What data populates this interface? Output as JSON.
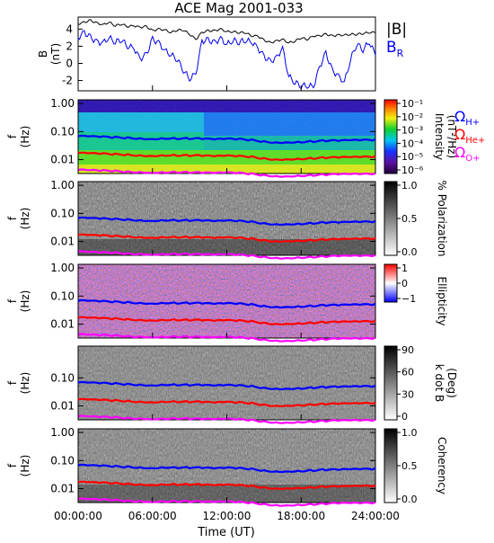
{
  "title": "ACE Mag 2001-033",
  "colors": {
    "btotal": "#000000",
    "br": "#0000ee",
    "h_plus": "#0000ff",
    "he_plus": "#ff0000",
    "o_plus": "#ff00ff"
  },
  "chart_data": [
    {
      "type": "line",
      "panel": "magnetic-field",
      "ylabel_top": "B",
      "ylabel_bottom": "(nT)",
      "ylim": [
        -3.2,
        5.4
      ],
      "yticks": [
        "4",
        "2",
        "0",
        "-2"
      ],
      "ytick_values": [
        4,
        2,
        0,
        -2
      ],
      "legend": [
        {
          "label": "|B|",
          "sub": "",
          "color": "#000000"
        },
        {
          "label": "B",
          "sub": "R",
          "color": "#0000ee"
        }
      ],
      "series": [
        {
          "id": "btotal",
          "color": "#000000",
          "x_hours": [
            0,
            0.5,
            1,
            1.5,
            2,
            2.5,
            3,
            3.5,
            4,
            4.5,
            5,
            5.5,
            6,
            6.5,
            7,
            7.5,
            8,
            8.5,
            9,
            9.5,
            10,
            10.5,
            11,
            11.5,
            12,
            12.5,
            13,
            13.5,
            14,
            14.5,
            15,
            15.5,
            16,
            16.5,
            17,
            17.5,
            18,
            18.5,
            19,
            19.5,
            20,
            20.5,
            21,
            21.5,
            22,
            22.5,
            23,
            23.5,
            24
          ],
          "values": [
            4.6,
            4.8,
            5.0,
            4.7,
            4.5,
            4.8,
            4.4,
            4.6,
            4.3,
            4.4,
            4.2,
            4.3,
            3.8,
            4.0,
            3.9,
            3.6,
            3.9,
            3.9,
            3.4,
            2.8,
            3.6,
            3.8,
            3.8,
            4.0,
            3.7,
            3.7,
            3.6,
            3.6,
            3.2,
            3.2,
            2.7,
            2.4,
            2.6,
            2.8,
            2.4,
            2.6,
            3.0,
            2.8,
            3.2,
            3.2,
            3.4,
            3.2,
            3.3,
            3.3,
            3.4,
            3.4,
            3.5,
            3.6,
            3.6
          ]
        },
        {
          "id": "br",
          "color": "#0000ee",
          "x_hours": [
            0,
            0.5,
            1,
            1.5,
            2,
            2.5,
            3,
            3.5,
            4,
            4.5,
            5,
            5.5,
            6,
            6.5,
            7,
            7.5,
            8,
            8.5,
            9,
            9.5,
            10,
            10.5,
            11,
            11.5,
            12,
            12.5,
            13,
            13.5,
            14,
            14.5,
            15,
            15.5,
            16,
            16.5,
            17,
            17.5,
            18,
            18.5,
            19,
            19.5,
            20,
            20.5,
            21,
            21.5,
            22,
            22.5,
            23,
            23.5,
            24
          ],
          "values": [
            3.0,
            3.6,
            3.0,
            2.5,
            2.4,
            3.0,
            2.5,
            2.8,
            2.0,
            1.8,
            0.5,
            1.0,
            2.8,
            2.4,
            1.5,
            1.0,
            0.5,
            -0.8,
            -1.8,
            -1.2,
            2.6,
            2.7,
            2.4,
            2.9,
            2.2,
            2.7,
            2.5,
            2.7,
            2.5,
            1.8,
            0.8,
            0.2,
            0.6,
            1.8,
            -1.5,
            -2.2,
            -2.6,
            -2.6,
            -2.7,
            -0.4,
            1.2,
            -0.8,
            -1.5,
            -2.2,
            0.5,
            2.3,
            1.6,
            2.5,
            1.0
          ]
        }
      ]
    },
    {
      "type": "heatmap",
      "panel": "spectrum",
      "ylabel_top": "f",
      "ylabel_bottom": "(Hz)",
      "yticks": [
        "1.00",
        "0.10",
        "0.01"
      ],
      "colorbar": {
        "label_line1": "Intensity",
        "label_line2": "(nT²/Hz)",
        "tick_labels": [
          "10⁻¹",
          "10⁻²",
          "10⁻³",
          "10⁻⁴",
          "10⁻⁵",
          "10⁻⁶"
        ]
      },
      "gyro_legend": [
        {
          "symbol": "Ω",
          "sub": "H+",
          "color": "#0000ff"
        },
        {
          "symbol": "Ω",
          "sub": "He+",
          "color": "#ff0000"
        },
        {
          "symbol": "Ω",
          "sub": "O+",
          "color": "#ff00ff"
        }
      ]
    },
    {
      "type": "heatmap",
      "panel": "polarization",
      "ylabel_top": "f",
      "ylabel_bottom": "(Hz)",
      "yticks": [
        "1.00",
        "0.10",
        "0.01"
      ],
      "colorbar": {
        "label_line1": "% Polarization",
        "label_line2": "",
        "tick_labels": [
          "1.0",
          "0.5",
          "0.0"
        ]
      }
    },
    {
      "type": "heatmap",
      "panel": "ellipticity",
      "ylabel_top": "f",
      "ylabel_bottom": "(Hz)",
      "yticks": [
        "1.00",
        "0.10",
        "0.01"
      ],
      "colorbar": {
        "label_line1": "Ellipticity",
        "label_line2": "",
        "tick_labels": [
          "1",
          "0",
          "−1"
        ]
      }
    },
    {
      "type": "heatmap",
      "panel": "k-dot-b",
      "ylabel_top": "f",
      "ylabel_bottom": "(Hz)",
      "yticks": [
        "0.10",
        "0.01"
      ],
      "colorbar": {
        "label_line1": "k dot B",
        "label_line2": "(Deg)",
        "tick_labels": [
          "90",
          "60",
          "30",
          "0"
        ]
      }
    },
    {
      "type": "heatmap",
      "panel": "coherency",
      "ylabel_top": "f",
      "ylabel_bottom": "(Hz)",
      "yticks": [
        "1.00",
        "0.10",
        "0.01"
      ],
      "colorbar": {
        "label_line1": "Coherency",
        "label_line2": "",
        "tick_labels": [
          "1.0",
          "0.5",
          "0.0"
        ]
      }
    }
  ],
  "gyrofrequency_lines": {
    "x_hours": [
      0,
      1,
      2,
      3,
      4,
      5,
      6,
      7,
      8,
      9,
      10,
      11,
      12,
      13,
      14,
      15,
      16,
      17,
      18,
      19,
      20,
      21,
      22,
      23,
      24
    ],
    "h_plus_hz": [
      0.068,
      0.066,
      0.064,
      0.062,
      0.06,
      0.057,
      0.055,
      0.058,
      0.057,
      0.056,
      0.055,
      0.052,
      0.054,
      0.053,
      0.05,
      0.044,
      0.041,
      0.042,
      0.043,
      0.045,
      0.047,
      0.047,
      0.048,
      0.049,
      0.05
    ],
    "he_plus_hz": [
      0.017,
      0.0165,
      0.016,
      0.0155,
      0.015,
      0.0142,
      0.0138,
      0.0145,
      0.0143,
      0.014,
      0.0137,
      0.013,
      0.0135,
      0.0132,
      0.0125,
      0.011,
      0.0102,
      0.0105,
      0.0108,
      0.0112,
      0.0117,
      0.0118,
      0.012,
      0.0122,
      0.0125
    ],
    "o_plus_hz": [
      0.0043,
      0.0041,
      0.004,
      0.0039,
      0.0037,
      0.0036,
      0.0035,
      0.0036,
      0.0036,
      0.0035,
      0.0034,
      0.0033,
      0.0034,
      0.0033,
      0.0031,
      0.0028,
      0.0026,
      0.0026,
      0.0027,
      0.0028,
      0.0029,
      0.003,
      0.003,
      0.003,
      0.0031
    ]
  },
  "x_axis": {
    "label": "Time (UT)",
    "ticks": [
      "00:00:00",
      "06:00:00",
      "12:00:00",
      "18:00:00",
      "24:00:00"
    ],
    "tick_hours": [
      0,
      6,
      12,
      18,
      24
    ]
  }
}
